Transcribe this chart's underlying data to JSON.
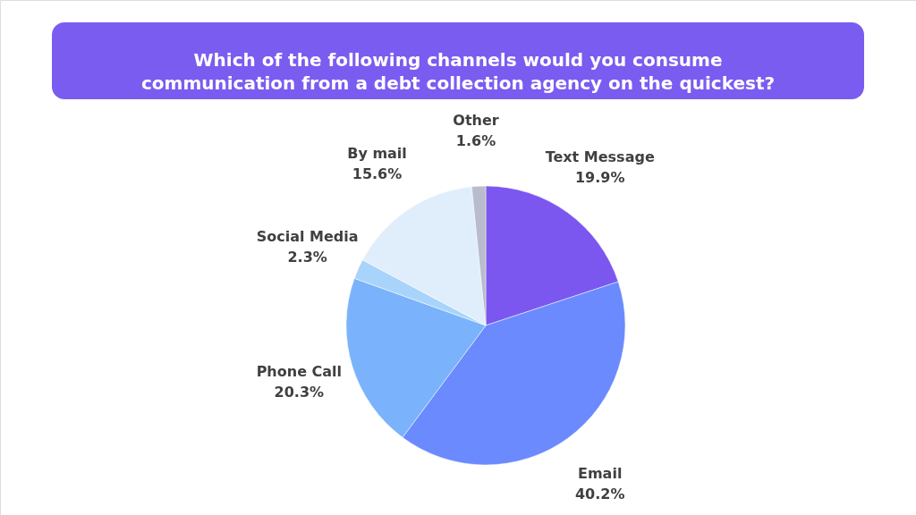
{
  "chart_data": {
    "type": "pie",
    "title": "Which of the following channels would you consume communication from a debt collection agency on the quickest?",
    "categories": [
      "Text Message",
      "Email",
      "Phone Call",
      "Social Media",
      "By mail",
      "Other"
    ],
    "values": [
      19.9,
      40.2,
      20.3,
      2.3,
      15.6,
      1.6
    ],
    "value_labels": [
      "19.9%",
      "40.2%",
      "20.3%",
      "2.3%",
      "15.6%",
      "1.6%"
    ],
    "colors": [
      "#7b57f0",
      "#6b8afd",
      "#7ab3fb",
      "#a8d4fb",
      "#e0eefc",
      "#b8bccc"
    ]
  }
}
